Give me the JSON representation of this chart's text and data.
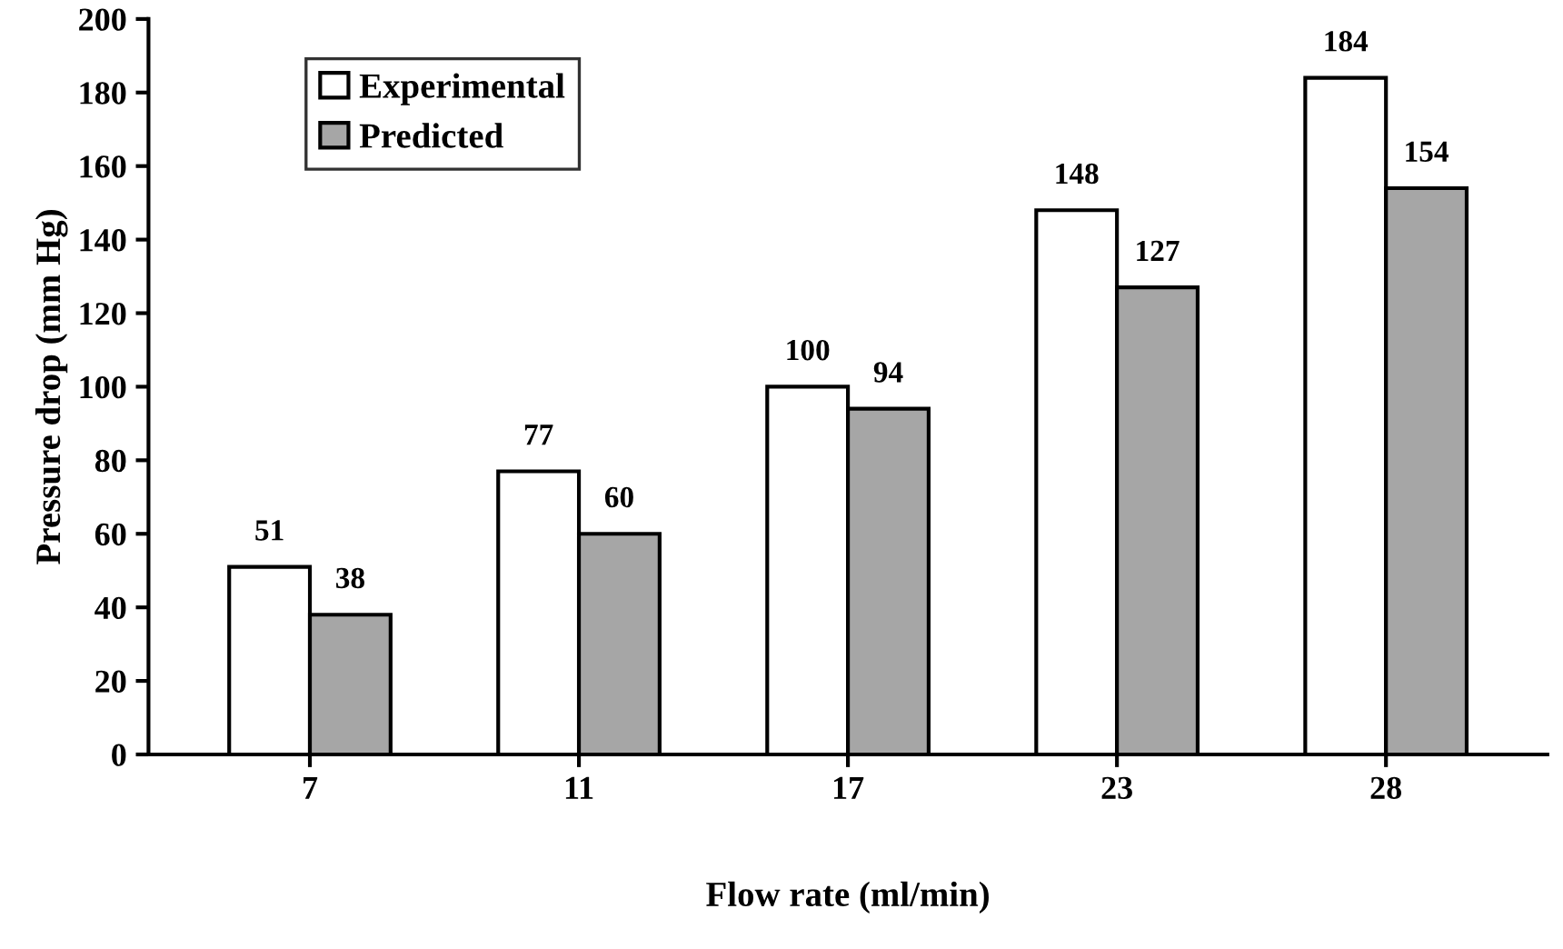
{
  "chart_data": {
    "type": "bar",
    "xlabel": "Flow rate (ml/min)",
    "ylabel": "Pressure drop (mm Hg)",
    "categories": [
      "7",
      "11",
      "17",
      "23",
      "28"
    ],
    "series": [
      {
        "name": "Experimental",
        "color": "#ffffff",
        "values": [
          51,
          77,
          100,
          148,
          184
        ]
      },
      {
        "name": "Predicted",
        "color": "#a6a6a6",
        "values": [
          38,
          60,
          94,
          127,
          154
        ]
      }
    ],
    "ylim": [
      0,
      200
    ],
    "yticks": [
      0,
      20,
      40,
      60,
      80,
      100,
      120,
      140,
      160,
      180,
      200
    ],
    "data_labels": true,
    "legend": "top left",
    "grid": false
  }
}
